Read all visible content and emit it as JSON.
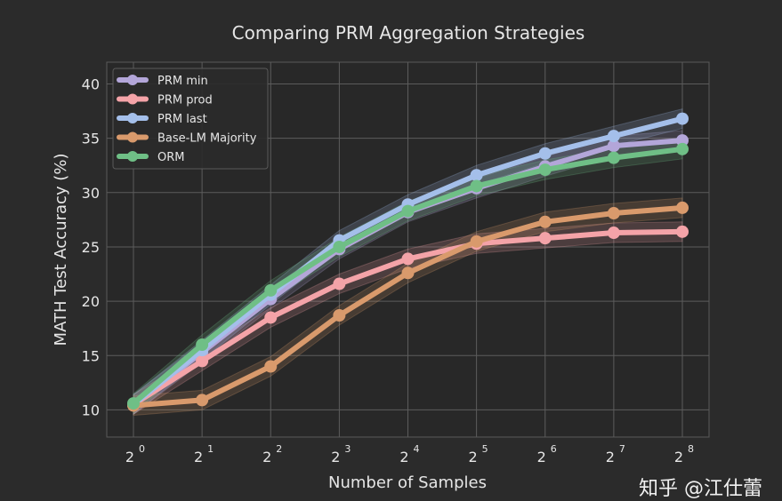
{
  "chart_data": {
    "type": "line",
    "title": "Comparing PRM Aggregation Strategies",
    "xlabel": "Number of Samples",
    "ylabel": "MATH Test Accuracy (%)",
    "x_base": "2",
    "x_exponents": [
      "0",
      "1",
      "2",
      "3",
      "4",
      "5",
      "6",
      "7",
      "8"
    ],
    "x": [
      1,
      2,
      4,
      8,
      16,
      32,
      64,
      128,
      256
    ],
    "x_scale": "log2",
    "ylim": [
      7.5,
      42
    ],
    "yticks": [
      10,
      15,
      20,
      25,
      30,
      35,
      40
    ],
    "grid": true,
    "legend_position": "top-left",
    "series": [
      {
        "name": "PRM min",
        "color": "#b3a6d9",
        "values": [
          10.5,
          15.3,
          20.2,
          24.8,
          28.2,
          30.4,
          32.4,
          34.3,
          34.8
        ]
      },
      {
        "name": "PRM prod",
        "color": "#f4a3a8",
        "values": [
          10.5,
          14.5,
          18.5,
          21.6,
          23.9,
          25.3,
          25.8,
          26.3,
          26.4
        ]
      },
      {
        "name": "PRM last",
        "color": "#a4bfea",
        "values": [
          10.5,
          15.5,
          20.6,
          25.6,
          28.9,
          31.6,
          33.6,
          35.2,
          36.8
        ]
      },
      {
        "name": "Base-LM Majority",
        "color": "#d99a6c",
        "values": [
          10.4,
          10.9,
          14.0,
          18.7,
          22.6,
          25.5,
          27.3,
          28.1,
          28.6
        ]
      },
      {
        "name": "ORM",
        "color": "#6fbf86",
        "values": [
          10.6,
          16.0,
          21.0,
          25.0,
          28.3,
          30.6,
          32.1,
          33.2,
          34.0
        ]
      }
    ]
  },
  "watermark": "知乎 @江仕蕾"
}
